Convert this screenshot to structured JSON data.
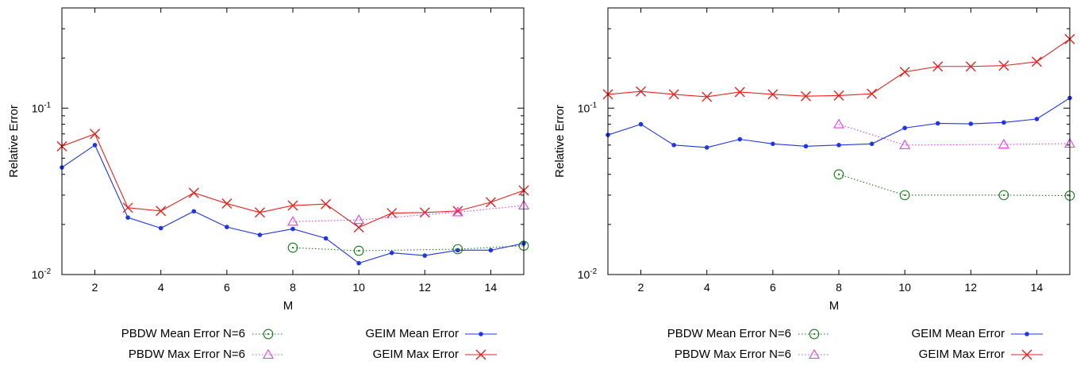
{
  "chart_data": [
    {
      "type": "line",
      "xlabel": "M",
      "ylabel": "Relative Error",
      "xlim": [
        1,
        15
      ],
      "ylim": [
        0.01,
        0.4
      ],
      "yscale": "log",
      "xticks": [
        2,
        4,
        6,
        8,
        10,
        12,
        14
      ],
      "yticks": [
        {
          "value": 0.01,
          "base": "10",
          "exp": "-2"
        },
        {
          "value": 0.1,
          "base": "10",
          "exp": "-1"
        }
      ],
      "grid": false,
      "legend_position": "bottom",
      "series": [
        {
          "name": "PBDW Mean Error N=6",
          "color": "#1a7a1a",
          "style": "dotted",
          "marker": "circle-dot",
          "x": [
            8,
            10,
            13,
            15
          ],
          "y": [
            0.0145,
            0.0139,
            0.0142,
            0.0149
          ]
        },
        {
          "name": "PBDW Max Error N=6",
          "color": "#e040e0",
          "style": "dotted",
          "marker": "triangle",
          "x": [
            8,
            10,
            13,
            15
          ],
          "y": [
            0.0208,
            0.0213,
            0.0237,
            0.026
          ]
        },
        {
          "name": "GEIM Mean Error",
          "color": "#1f35e6",
          "style": "solid",
          "marker": "dot",
          "x": [
            1,
            2,
            3,
            4,
            5,
            6,
            7,
            8,
            9,
            10,
            11,
            12,
            13,
            14,
            15
          ],
          "y": [
            0.044,
            0.06,
            0.022,
            0.019,
            0.024,
            0.0193,
            0.0173,
            0.0188,
            0.0165,
            0.0117,
            0.0135,
            0.013,
            0.014,
            0.014,
            0.0154
          ]
        },
        {
          "name": "GEIM Max Error",
          "color": "#e8221f",
          "style": "solid",
          "marker": "x",
          "x": [
            1,
            2,
            3,
            4,
            5,
            6,
            7,
            8,
            9,
            10,
            11,
            12,
            13,
            14,
            15
          ],
          "y": [
            0.059,
            0.07,
            0.0252,
            0.0241,
            0.031,
            0.0267,
            0.0236,
            0.026,
            0.0265,
            0.0192,
            0.0234,
            0.0236,
            0.0241,
            0.0272,
            0.032
          ]
        }
      ]
    },
    {
      "type": "line",
      "xlabel": "M",
      "ylabel": "Relative Error",
      "xlim": [
        1,
        15
      ],
      "ylim": [
        0.01,
        0.4
      ],
      "yscale": "log",
      "xticks": [
        2,
        4,
        6,
        8,
        10,
        12,
        14
      ],
      "yticks": [
        {
          "value": 0.01,
          "base": "10",
          "exp": "-2"
        },
        {
          "value": 0.1,
          "base": "10",
          "exp": "-1"
        }
      ],
      "grid": false,
      "legend_position": "bottom",
      "series": [
        {
          "name": "PBDW Mean Error N=6",
          "color": "#1a7a1a",
          "style": "dotted",
          "marker": "circle-dot",
          "x": [
            8,
            10,
            13,
            15
          ],
          "y": [
            0.04,
            0.03,
            0.03,
            0.0298
          ]
        },
        {
          "name": "PBDW Max Error N=6",
          "color": "#e040e0",
          "style": "dotted",
          "marker": "triangle",
          "x": [
            8,
            10,
            13,
            15
          ],
          "y": [
            0.08,
            0.06,
            0.0605,
            0.0612
          ]
        },
        {
          "name": "GEIM Mean Error",
          "color": "#1f35e6",
          "style": "solid",
          "marker": "dot",
          "x": [
            1,
            2,
            3,
            4,
            5,
            6,
            7,
            8,
            9,
            10,
            11,
            12,
            13,
            14,
            15
          ],
          "y": [
            0.069,
            0.08,
            0.06,
            0.058,
            0.065,
            0.061,
            0.059,
            0.06,
            0.061,
            0.076,
            0.081,
            0.0805,
            0.082,
            0.086,
            0.115
          ]
        },
        {
          "name": "GEIM Max Error",
          "color": "#e8221f",
          "style": "solid",
          "marker": "x",
          "x": [
            1,
            2,
            3,
            4,
            5,
            6,
            7,
            8,
            9,
            10,
            11,
            12,
            13,
            14,
            15
          ],
          "y": [
            0.121,
            0.126,
            0.121,
            0.117,
            0.125,
            0.121,
            0.118,
            0.119,
            0.122,
            0.165,
            0.178,
            0.178,
            0.18,
            0.19,
            0.26
          ]
        }
      ]
    }
  ]
}
